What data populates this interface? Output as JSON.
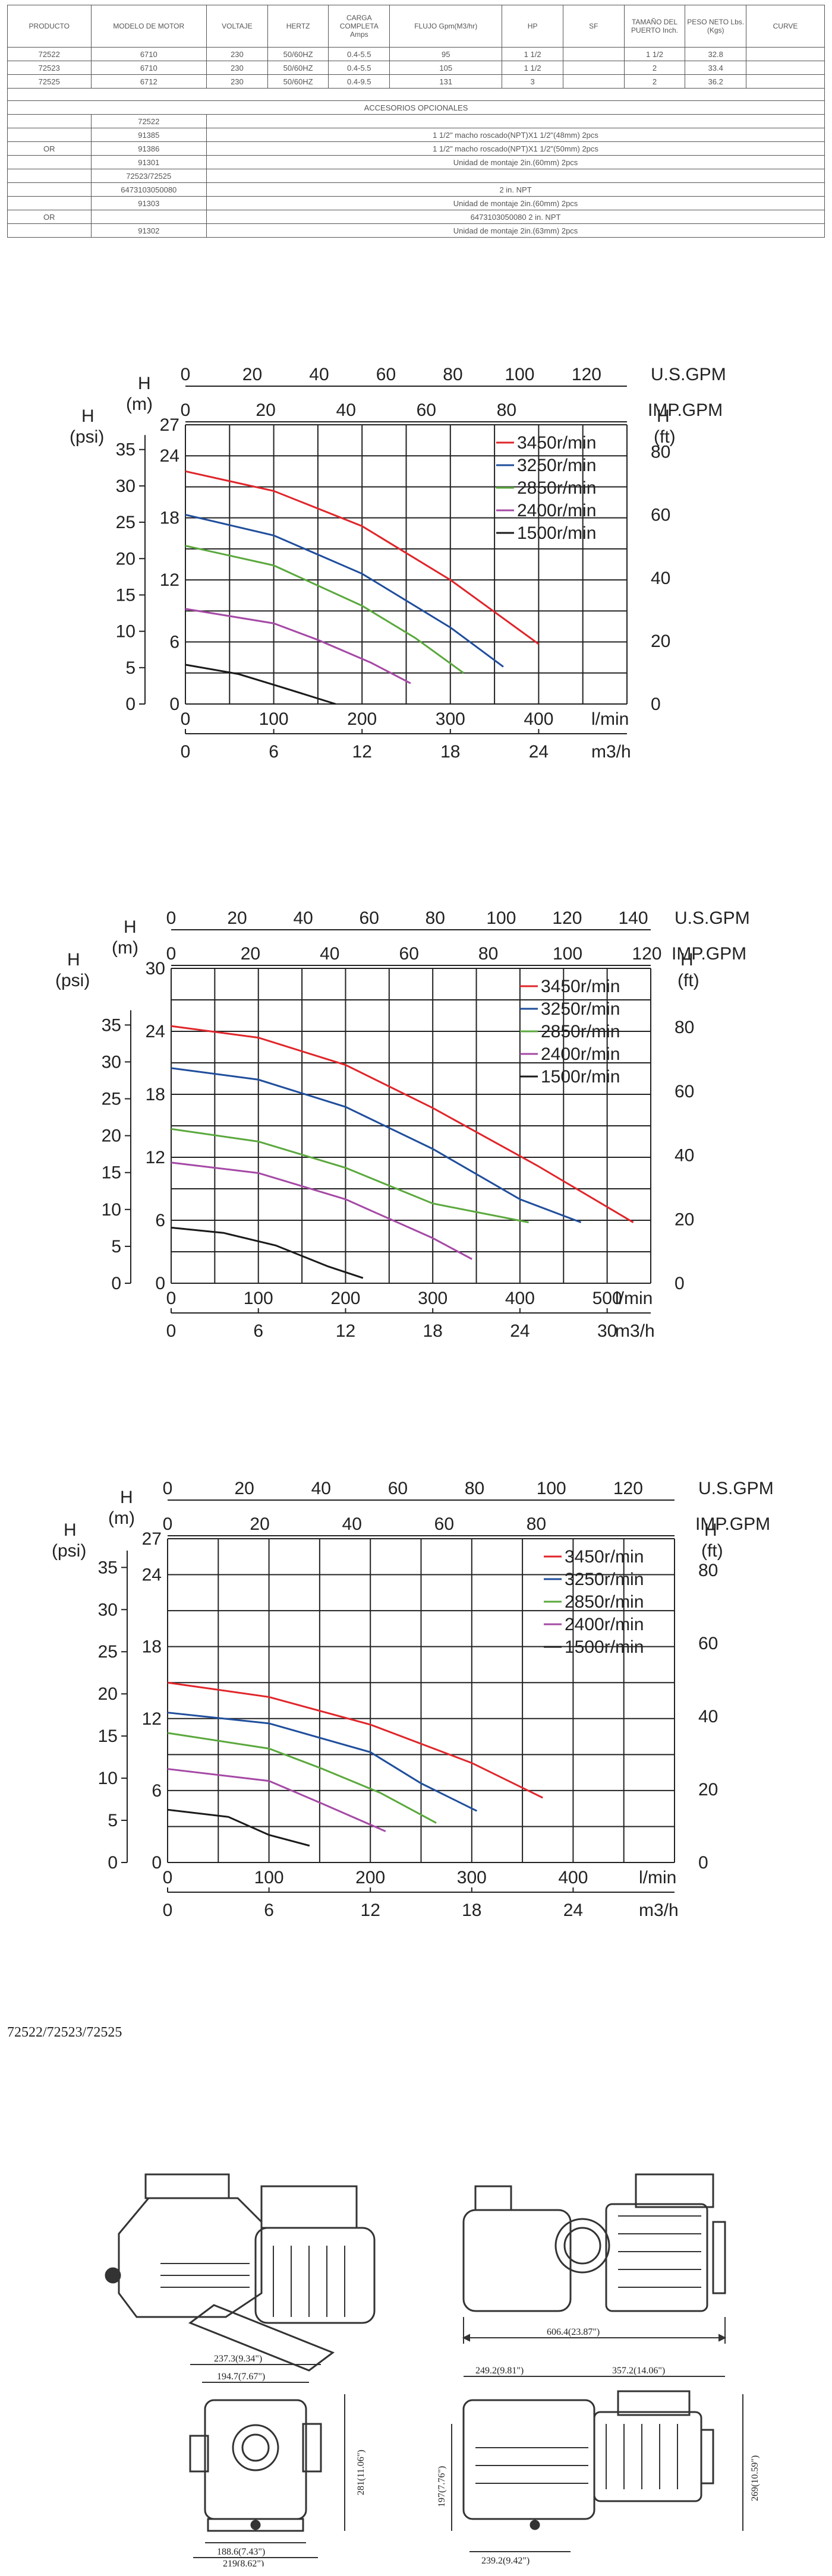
{
  "table": {
    "headers": [
      "PRODUCTO",
      "MODELO DE MOTOR",
      "VOLTAJE",
      "HERTZ",
      "CARGA COMPLETA Amps",
      "FLUJO Gpm(M3/hr)",
      "HP",
      "SF",
      "TAMAÑO DEL PUERTO Inch.",
      "PESO NETO Lbs. (Kgs)",
      "CURVE"
    ],
    "rows": [
      [
        "72522",
        "6710",
        "230",
        "50/60HZ",
        "0.4-5.5",
        "95",
        "1 1/2",
        "",
        "1 1/2",
        "32.8",
        ""
      ],
      [
        "72523",
        "6710",
        "230",
        "50/60HZ",
        "0.4-5.5",
        "105",
        "1 1/2",
        "",
        "2",
        "33.4",
        ""
      ],
      [
        "72525",
        "6712",
        "230",
        "50/60HZ",
        "0.4-9.5",
        "131",
        "3",
        "",
        "2",
        "36.2",
        ""
      ]
    ],
    "accessories_title": "ACCESORIOS OPCIONALES",
    "accessories": [
      {
        "or": "",
        "code": "72522",
        "desc": ""
      },
      {
        "or": "",
        "code": "91385",
        "desc": "1 1/2\" macho roscado(NPT)X1 1/2\"(48mm) 2pcs"
      },
      {
        "or": "OR",
        "code": "91386",
        "desc": "1 1/2\" macho roscado(NPT)X1 1/2\"(50mm) 2pcs"
      },
      {
        "or": "",
        "code": "91301",
        "desc": "Unidad de montaje 2in.(60mm) 2pcs"
      },
      {
        "or": "",
        "code": "72523/72525",
        "desc": ""
      },
      {
        "or": "",
        "code": "6473103050080",
        "desc": "2 in. NPT"
      },
      {
        "or": "",
        "code": "91303",
        "desc": "Unidad de montaje 2in.(60mm) 2pcs"
      },
      {
        "or": "OR",
        "code": "",
        "desc": "6473103050080 2 in. NPT"
      },
      {
        "or": "",
        "code": "91302",
        "desc": "Unidad de montaje 2in.(63mm)    2pcs"
      }
    ]
  },
  "chart_data": [
    {
      "type": "line",
      "title": "",
      "top_axis_usgpm": {
        "label": "U.S.GPM",
        "ticks": [
          0,
          20,
          40,
          60,
          80,
          100,
          120
        ]
      },
      "top_axis_impgpm": {
        "label": "IMP.GPM",
        "ticks": [
          0,
          20,
          40,
          60,
          80
        ]
      },
      "h_m_label": "H\n(m)",
      "h_psi_label": "H\n(psi)",
      "h_ft_label": "H\n(ft)",
      "m_ticks": [
        0,
        6,
        12,
        18,
        24,
        27
      ],
      "psi_ticks": [
        0,
        5,
        10,
        15,
        20,
        25,
        30,
        35
      ],
      "ft_ticks": [
        0,
        20,
        40,
        60,
        80
      ],
      "x_lmin": {
        "label": "l/min",
        "ticks": [
          0,
          100,
          200,
          300,
          400
        ]
      },
      "x_m3h": {
        "label": "m3/h",
        "ticks": [
          0,
          6,
          12,
          18,
          24
        ]
      },
      "xlim": [
        0,
        500
      ],
      "ylim_m": [
        0,
        27
      ],
      "series": [
        {
          "name": "3450r/min",
          "color": "#e0252a",
          "x": [
            0,
            100,
            200,
            300,
            400
          ],
          "y": [
            22.5,
            20.6,
            17.2,
            12.0,
            5.8
          ]
        },
        {
          "name": "3250r/min",
          "color": "#1f4e9c",
          "x": [
            0,
            100,
            200,
            300,
            360
          ],
          "y": [
            18.3,
            16.3,
            12.6,
            7.4,
            3.6
          ]
        },
        {
          "name": "2850r/min",
          "color": "#5aa83c",
          "x": [
            0,
            100,
            200,
            260,
            315
          ],
          "y": [
            15.3,
            13.4,
            9.5,
            6.4,
            3.0
          ]
        },
        {
          "name": "2400r/min",
          "color": "#a549a5",
          "x": [
            0,
            100,
            150,
            210,
            255
          ],
          "y": [
            9.2,
            7.8,
            6.2,
            4.0,
            2.0
          ]
        },
        {
          "name": "1500r/min",
          "color": "#1a1a1a",
          "x": [
            0,
            60,
            110,
            170
          ],
          "y": [
            3.8,
            2.9,
            1.6,
            0
          ]
        }
      ]
    },
    {
      "type": "line",
      "title": "",
      "top_axis_usgpm": {
        "label": "U.S.GPM",
        "ticks": [
          0,
          20,
          40,
          60,
          80,
          100,
          120,
          140
        ]
      },
      "top_axis_impgpm": {
        "label": "IMP.GPM",
        "ticks": [
          0,
          20,
          40,
          60,
          80,
          100,
          120
        ]
      },
      "h_m_label": "H\n(m)",
      "h_psi_label": "H\n(psi)",
      "h_ft_label": "H\n(ft)",
      "m_ticks": [
        0,
        6,
        12,
        18,
        24,
        30
      ],
      "psi_ticks": [
        0,
        5,
        10,
        15,
        20,
        25,
        30,
        35
      ],
      "ft_ticks": [
        0,
        20,
        40,
        60,
        80
      ],
      "x_lmin": {
        "label": "l/min",
        "ticks": [
          0,
          100,
          200,
          300,
          400,
          500
        ]
      },
      "x_m3h": {
        "label": "m3/h",
        "ticks": [
          0,
          6,
          12,
          18,
          24,
          30
        ]
      },
      "xlim": [
        0,
        550
      ],
      "ylim_m": [
        0,
        30
      ],
      "series": [
        {
          "name": "3450r/min",
          "color": "#e0252a",
          "x": [
            0,
            100,
            200,
            300,
            420,
            530
          ],
          "y": [
            24.5,
            23.4,
            20.8,
            16.7,
            11.2,
            5.8
          ]
        },
        {
          "name": "3250r/min",
          "color": "#1f4e9c",
          "x": [
            0,
            100,
            200,
            300,
            400,
            470
          ],
          "y": [
            20.5,
            19.4,
            16.8,
            12.8,
            8.0,
            5.8
          ]
        },
        {
          "name": "2850r/min",
          "color": "#5aa83c",
          "x": [
            0,
            100,
            200,
            300,
            410
          ],
          "y": [
            14.7,
            13.5,
            11.0,
            7.6,
            5.8
          ]
        },
        {
          "name": "2400r/min",
          "color": "#a549a5",
          "x": [
            0,
            100,
            200,
            300,
            345
          ],
          "y": [
            11.5,
            10.5,
            8.0,
            4.3,
            2.3
          ]
        },
        {
          "name": "1500r/min",
          "color": "#1a1a1a",
          "x": [
            0,
            60,
            120,
            180,
            220
          ],
          "y": [
            5.3,
            4.8,
            3.6,
            1.6,
            0.5
          ]
        }
      ]
    },
    {
      "type": "line",
      "title": "",
      "top_axis_usgpm": {
        "label": "U.S.GPM",
        "ticks": [
          0,
          20,
          40,
          60,
          80,
          100,
          120
        ]
      },
      "top_axis_impgpm": {
        "label": "IMP.GPM",
        "ticks": [
          0,
          20,
          40,
          60,
          80
        ]
      },
      "h_m_label": "H\n(m)",
      "h_psi_label": "H\n(psi)",
      "h_ft_label": "H\n(ft)",
      "m_ticks": [
        0,
        6,
        12,
        18,
        24,
        27
      ],
      "psi_ticks": [
        0,
        5,
        10,
        15,
        20,
        25,
        30,
        35
      ],
      "ft_ticks": [
        0,
        20,
        40,
        60,
        80
      ],
      "x_lmin": {
        "label": "l/min",
        "ticks": [
          0,
          100,
          200,
          300,
          400
        ]
      },
      "x_m3h": {
        "label": "m3/h",
        "ticks": [
          0,
          6,
          12,
          18,
          24
        ]
      },
      "xlim": [
        0,
        500
      ],
      "ylim_m": [
        0,
        27
      ],
      "series": [
        {
          "name": "3450r/min",
          "color": "#e0252a",
          "x": [
            0,
            100,
            200,
            300,
            370
          ],
          "y": [
            15.0,
            13.8,
            11.5,
            8.3,
            5.4
          ]
        },
        {
          "name": "3250r/min",
          "color": "#1f4e9c",
          "x": [
            0,
            100,
            200,
            250,
            305
          ],
          "y": [
            12.5,
            11.6,
            9.2,
            6.6,
            4.3
          ]
        },
        {
          "name": "2850r/min",
          "color": "#5aa83c",
          "x": [
            0,
            100,
            150,
            210,
            265
          ],
          "y": [
            10.8,
            9.5,
            7.9,
            5.8,
            3.3
          ]
        },
        {
          "name": "2400r/min",
          "color": "#a549a5",
          "x": [
            0,
            100,
            150,
            215
          ],
          "y": [
            7.8,
            6.8,
            5.0,
            2.6
          ]
        },
        {
          "name": "1500r/min",
          "color": "#1a1a1a",
          "x": [
            0,
            60,
            100,
            140
          ],
          "y": [
            4.4,
            3.8,
            2.3,
            1.4
          ]
        }
      ]
    }
  ],
  "model_caption": "72522/72523/72525",
  "drawing_dims": {
    "total_length": "606.4(23.87\")",
    "w_top": "237.3(9.34\")",
    "w_inner": "194.7(7.67\")",
    "h_front": "281(11.06\")",
    "base_inner": "188.6(7.43\")",
    "base_outer": "219(8.62\")",
    "side_left": "249.2(9.81\")",
    "side_right": "357.2(14.06\")",
    "side_h_left": "197(7.76\")",
    "side_h_right": "269(10.59\")",
    "side_base": "239.2(9.42\")"
  }
}
